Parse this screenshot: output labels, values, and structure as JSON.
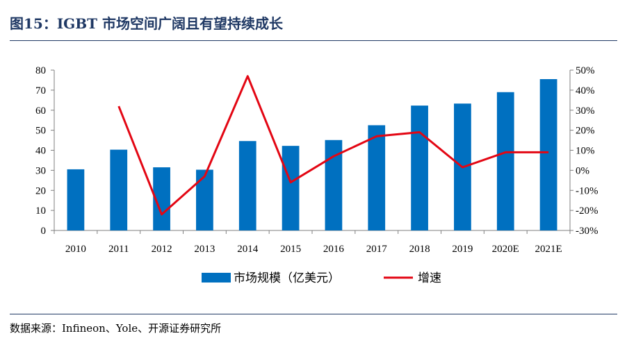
{
  "figure": {
    "title": "图15：IGBT 市场空间广阔且有望持续成长",
    "source": "数据来源：Infineon、Yole、开源证券研究所"
  },
  "chart_data": {
    "type": "bar+line",
    "categories": [
      "2010",
      "2011",
      "2012",
      "2013",
      "2014",
      "2015",
      "2016",
      "2017",
      "2018",
      "2019",
      "2020E",
      "2021E"
    ],
    "series": [
      {
        "name": "市场规模（亿美元）",
        "type": "bar",
        "axis": "left",
        "color": "#0070c0",
        "values": [
          30.5,
          40.3,
          31.5,
          30.3,
          44.6,
          42.2,
          45.1,
          52.5,
          62.3,
          63.3,
          69.0,
          75.5
        ]
      },
      {
        "name": "增速",
        "type": "line",
        "axis": "right",
        "color": "#e30613",
        "values": [
          null,
          32,
          -22,
          -3,
          47,
          -6,
          7,
          17,
          19,
          1.5,
          9,
          9
        ]
      }
    ],
    "y_left": {
      "min": 0,
      "max": 80,
      "step": 10,
      "ticks": [
        "0",
        "10",
        "20",
        "30",
        "40",
        "50",
        "60",
        "70",
        "80"
      ]
    },
    "y_right": {
      "min": -30,
      "max": 50,
      "step": 10,
      "ticks": [
        "-30%",
        "-20%",
        "-10%",
        "0%",
        "10%",
        "20%",
        "30%",
        "40%",
        "50%"
      ]
    },
    "grid": false,
    "legend": "bottom"
  }
}
